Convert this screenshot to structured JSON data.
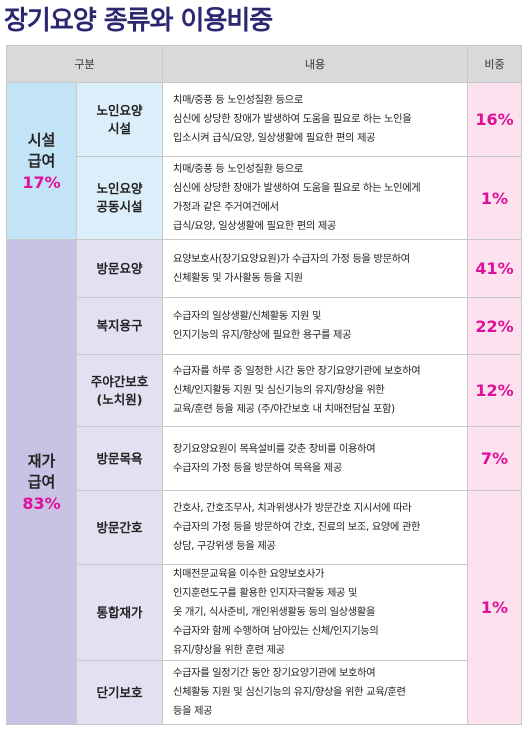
{
  "title": "장기요양 종류와 이용비중",
  "header": {
    "col1": "구분",
    "col2": "내용",
    "col3": "비중"
  },
  "groups": [
    {
      "label": "시설\n급여",
      "pct": "17%"
    },
    {
      "label": "재가\n급여",
      "pct": "83%"
    }
  ],
  "rows": [
    {
      "name": "노인요양\n시설",
      "desc": "치매/중풍 등 노인성질환 등으로\n심신에 상당한 장애가 발생하여 도움을 필요로 하는 노인을\n입소시켜 급식/요양, 일상생활에 필요한 편의 제공",
      "ratio": "16%"
    },
    {
      "name": "노인요양\n공동시설",
      "desc": "치매/중풍 등 노인성질환 등으로\n심신에 상당한 장애가 발생하여 도움을 필요로 하는 노인에게\n가정과 같은 주거여건에서\n급식/요양, 일상생활에 필요한 편의 제공",
      "ratio": "1%"
    },
    {
      "name": "방문요양",
      "desc": "요양보호사(장기요양요원)가 수급자의 가정 등을 방문하여\n신체활동 및 가사활동 등을 지원",
      "ratio": "41%"
    },
    {
      "name": "복지용구",
      "desc": "수급자의 일상생활/신체활동 지원 및\n인지기능의 유지/향상에 필요한 용구를 제공",
      "ratio": "22%"
    },
    {
      "name": "주야간보호\n(노치원)",
      "desc": "수급자를 하루 중 일정한 시간 동안 장기요양기관에 보호하여\n신체/인지활동 지원 및 심신기능의 유지/향상을 위한\n교육/훈련 등을 제공 (주/야간보호 내 치매전담실 포함)",
      "ratio": "12%"
    },
    {
      "name": "방문목욕",
      "desc": "장기요양요원이 목욕설비를 갖춘 장비를 이용하여\n수급자의 가정 등을 방문하여 목욕을 제공",
      "ratio": "7%"
    },
    {
      "name": "방문간호",
      "desc": "간호사, 간호조무사, 치과위생사가 방문간호 지시서에 따라\n수급자의 가정 등을 방문하여 간호, 진료의 보조, 요양에 관한\n상담, 구강위생 등을 제공",
      "ratio": ""
    },
    {
      "name": "통합재가",
      "desc": "치매전문교육을 이수한 요양보호사가\n인지훈련도구를 활용한 인지자극활동 제공 및\n옷 개기, 식사준비, 개인위생활동 등의 일상생활을\n수급자와 함께 수행하며 남아있는 신체/인지기능의\n유지/향상을 위한 훈련  제공",
      "ratio": "1%"
    },
    {
      "name": "단기보호",
      "desc": "수급자를 일정기간 동안 장기요양기관에 보호하여\n신체활동 지원 및 심신기능의 유지/향상을 위한 교육/훈련\n등을 제공",
      "ratio": ""
    }
  ]
}
